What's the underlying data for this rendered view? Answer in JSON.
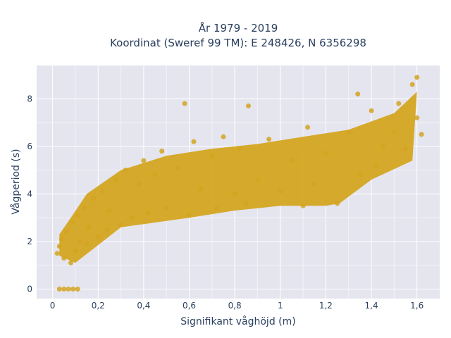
{
  "chart_data": {
    "type": "scatter",
    "title": "År 1979 - 2019",
    "subtitle": "Koordinat (Sweref 99 TM): E 248426, N 6356298",
    "xlabel": "Signifikant våghöjd (m)",
    "ylabel": "Vågperiod (s)",
    "xlim": [
      -0.07,
      1.7
    ],
    "ylim": [
      -0.4,
      9.4
    ],
    "x_ticks": [
      0,
      0.2,
      0.4,
      0.6,
      0.8,
      1,
      1.2,
      1.4,
      1.6
    ],
    "x_tick_labels": [
      "0",
      "0,2",
      "0,4",
      "0,6",
      "0,8",
      "1",
      "1,2",
      "1,4",
      "1,6"
    ],
    "y_ticks": [
      0,
      2,
      4,
      6,
      8
    ],
    "y_tick_labels": [
      "0",
      "2",
      "4",
      "6",
      "8"
    ],
    "grid": true,
    "legend": "none",
    "marker_color": "#d4a520",
    "plot_bg": "#e5e5ef",
    "series": [
      {
        "points": [
          [
            0.02,
            1.5
          ],
          [
            0.03,
            1.8
          ],
          [
            0.04,
            2.1
          ],
          [
            0.05,
            1.3
          ],
          [
            0.06,
            2.4
          ],
          [
            0.08,
            1.1
          ],
          [
            0.09,
            2.8
          ],
          [
            0.1,
            1.6
          ],
          [
            0.11,
            3.1
          ],
          [
            0.12,
            2.0
          ],
          [
            0.14,
            3.4
          ],
          [
            0.15,
            1.9
          ],
          [
            0.16,
            2.6
          ],
          [
            0.18,
            3.8
          ],
          [
            0.2,
            2.2
          ],
          [
            0.22,
            4.1
          ],
          [
            0.24,
            2.5
          ],
          [
            0.25,
            3.3
          ],
          [
            0.28,
            4.6
          ],
          [
            0.3,
            2.7
          ],
          [
            0.32,
            5.0
          ],
          [
            0.35,
            3.0
          ],
          [
            0.38,
            4.4
          ],
          [
            0.4,
            5.4
          ],
          [
            0.42,
            3.2
          ],
          [
            0.45,
            4.8
          ],
          [
            0.48,
            5.8
          ],
          [
            0.5,
            3.4
          ],
          [
            0.55,
            5.1
          ],
          [
            0.58,
            7.8
          ],
          [
            0.6,
            3.1
          ],
          [
            0.62,
            6.2
          ],
          [
            0.65,
            4.2
          ],
          [
            0.7,
            5.6
          ],
          [
            0.72,
            3.4
          ],
          [
            0.75,
            6.4
          ],
          [
            0.8,
            4.0
          ],
          [
            0.82,
            5.9
          ],
          [
            0.85,
            3.6
          ],
          [
            0.86,
            7.7
          ],
          [
            0.9,
            4.6
          ],
          [
            0.95,
            6.3
          ],
          [
            1.0,
            4.1
          ],
          [
            1.05,
            5.4
          ],
          [
            1.1,
            3.5
          ],
          [
            1.12,
            6.8
          ],
          [
            1.15,
            4.4
          ],
          [
            1.2,
            5.7
          ],
          [
            1.25,
            3.6
          ],
          [
            1.3,
            6.6
          ],
          [
            1.34,
            8.2
          ],
          [
            1.35,
            4.8
          ],
          [
            1.4,
            7.5
          ],
          [
            1.42,
            5.2
          ],
          [
            1.45,
            6.0
          ],
          [
            1.5,
            6.6
          ],
          [
            1.52,
            7.8
          ],
          [
            1.55,
            5.9
          ],
          [
            1.58,
            8.6
          ],
          [
            1.6,
            8.9
          ],
          [
            1.62,
            6.5
          ],
          [
            1.6,
            7.2
          ],
          [
            0.03,
            0.0
          ],
          [
            0.05,
            0.0
          ],
          [
            0.07,
            0.0
          ],
          [
            0.09,
            0.0
          ],
          [
            0.11,
            0.0
          ]
        ]
      }
    ]
  }
}
